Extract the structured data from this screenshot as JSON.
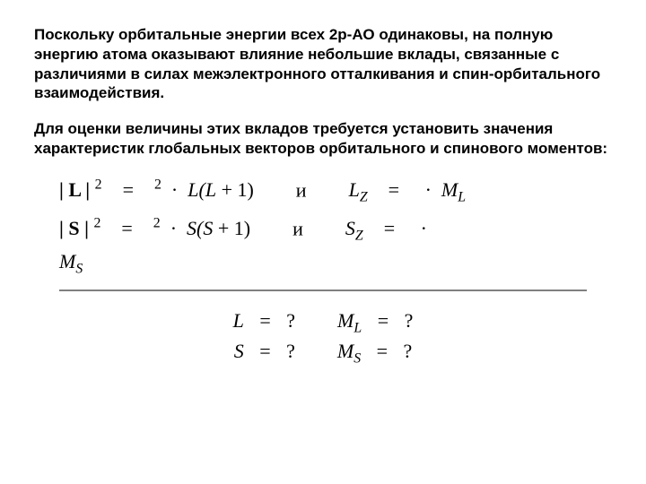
{
  "text": {
    "para1": "Поскольку орбитальные энергии всех 2р-АО одинаковы, на полную энергию атома оказывают влияние небольшие вклады, связанные с различиями в силах межэлектронного отталкивания и спин-орбитального взаимодействия.",
    "para2": "Для оценки величины этих вкладов требуется установить значения характеристик глобальных векторов орбитального и спинового моментов:",
    "fontsize_para": 17,
    "fontsize_formula": 22,
    "fontsize_q": 22,
    "hr_color": "#808080",
    "bg": "#ffffff"
  },
  "formula": {
    "L_left": "| L |",
    "sq": "2",
    "eq": "=",
    "box": "",
    "dot": "·",
    "Lfn_open": "L(",
    "Lvar": "L",
    "plus1": " + 1)",
    "and": "и",
    "Lz": "L",
    "z": "Z",
    "ML": "M",
    "Lsub": "L",
    "S_left": "| S |",
    "Sfn_open": "S(",
    "Svar": "S",
    "Sz": "S",
    "MS": "M",
    "Ssub": "S"
  },
  "q": {
    "L": "L",
    "ML": "M",
    "Lsub": "L",
    "S": "S",
    "MS": "M",
    "Ssub": "S",
    "eq": "=",
    "qm": "?"
  }
}
